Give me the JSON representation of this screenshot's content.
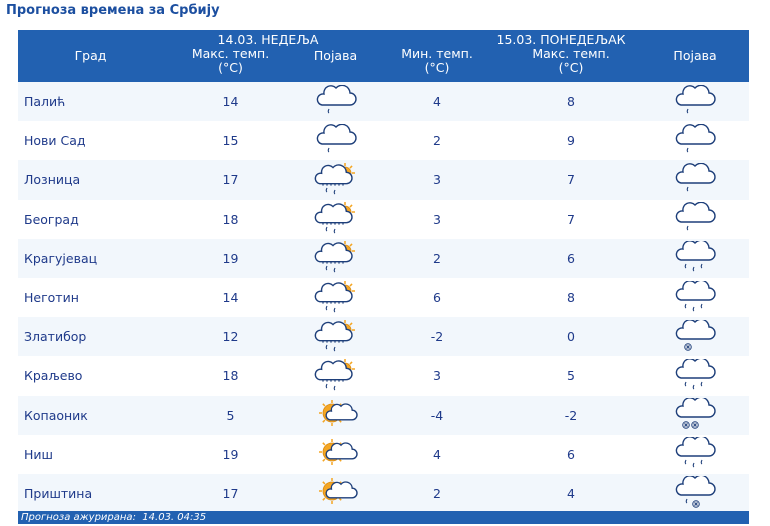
{
  "title": "Прогноза времена за Србију",
  "header": {
    "day1": "14.03. НЕДЕЉА",
    "day2": "15.03. ПОНЕДЕЉАК",
    "col_city": "Град",
    "col_max1_line1": "Макс. темп.",
    "col_max1_line2": "(°C)",
    "col_icon1": "Појава",
    "col_min2_line1": "Мин. темп.",
    "col_min2_line2": "(°C)",
    "col_max2_line1": "Макс. темп.",
    "col_max2_line2": "(°C)",
    "col_icon2": "Појава"
  },
  "rows": [
    {
      "city": "Палић",
      "max1": "14",
      "icon1": "cloud-drizzle-icon",
      "min2": "4",
      "max2": "8",
      "icon2": "cloud-drizzle-icon"
    },
    {
      "city": "Нови Сад",
      "max1": "15",
      "icon1": "cloud-drizzle-icon",
      "min2": "2",
      "max2": "9",
      "icon2": "cloud-drizzle-icon"
    },
    {
      "city": "Лозница",
      "max1": "17",
      "icon1": "partly-cloudy-rain-icon",
      "min2": "3",
      "max2": "7",
      "icon2": "cloud-drizzle-icon"
    },
    {
      "city": "Београд",
      "max1": "18",
      "icon1": "partly-cloudy-rain-icon",
      "min2": "3",
      "max2": "7",
      "icon2": "cloud-drizzle-icon"
    },
    {
      "city": "Крагујевац",
      "max1": "19",
      "icon1": "partly-cloudy-rain-icon",
      "min2": "2",
      "max2": "6",
      "icon2": "cloud-rain-icon"
    },
    {
      "city": "Неготин",
      "max1": "14",
      "icon1": "partly-cloudy-rain-icon",
      "min2": "6",
      "max2": "8",
      "icon2": "cloud-rain-icon"
    },
    {
      "city": "Златибор",
      "max1": "12",
      "icon1": "partly-cloudy-rain-icon",
      "min2": "-2",
      "max2": "0",
      "icon2": "cloud-snow-icon"
    },
    {
      "city": "Краљево",
      "max1": "18",
      "icon1": "partly-cloudy-rain-icon",
      "min2": "3",
      "max2": "5",
      "icon2": "cloud-rain-icon"
    },
    {
      "city": "Копаоник",
      "max1": "5",
      "icon1": "sun-cloud-icon",
      "min2": "-4",
      "max2": "-2",
      "icon2": "cloud-heavy-snow-icon"
    },
    {
      "city": "Ниш",
      "max1": "19",
      "icon1": "sun-cloud-icon",
      "min2": "4",
      "max2": "6",
      "icon2": "cloud-rain-icon"
    },
    {
      "city": "Приштина",
      "max1": "17",
      "icon1": "sun-cloud-icon",
      "min2": "2",
      "max2": "4",
      "icon2": "cloud-sleet-icon"
    }
  ],
  "footer": {
    "label": "Прогноза ажурирана:",
    "value": "14.03. 04:35"
  },
  "colors": {
    "header_bg": "#2261b1",
    "row_alt_bg": "#f2f7fc",
    "text": "#1f3a8a",
    "title": "#1c4fa0",
    "sun": "#f5a623"
  }
}
